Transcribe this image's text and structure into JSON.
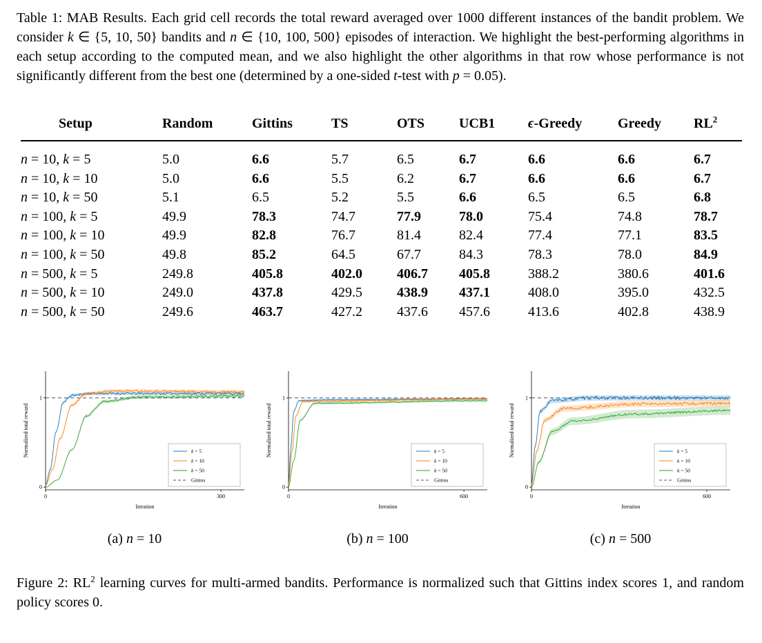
{
  "document": {
    "table_caption_segments": [
      {
        "t": "Table 1: MAB Results. Each grid cell records the total reward averaged over 1000 different instances of the bandit problem. We consider "
      },
      {
        "t": "k",
        "s": "i"
      },
      {
        "t": " ∈ {5, 10, 50} bandits and "
      },
      {
        "t": "n",
        "s": "i"
      },
      {
        "t": " ∈ {10, 100, 500} episodes of interaction. We highlight the best-performing algorithms in each setup according to the computed mean, and we also highlight the other algorithms in that row whose performance is not significantly different from the best one (determined by a one-sided "
      },
      {
        "t": "t",
        "s": "i"
      },
      {
        "t": "-test with "
      },
      {
        "t": "p",
        "s": "i"
      },
      {
        "t": " = 0.05)."
      }
    ],
    "figure_caption_segments": [
      {
        "t": "Figure 2: RL"
      },
      {
        "t": "2",
        "s": "sup"
      },
      {
        "t": " learning curves for multi-armed bandits. Performance is normalized such that Gittins index scores 1, and random policy scores 0."
      }
    ],
    "subcaptions": {
      "a": [
        {
          "t": "(a) "
        },
        {
          "t": "n",
          "s": "i"
        },
        {
          "t": " = 10"
        }
      ],
      "b": [
        {
          "t": "(b) "
        },
        {
          "t": "n",
          "s": "i"
        },
        {
          "t": " = 100"
        }
      ],
      "c": [
        {
          "t": "(c) "
        },
        {
          "t": "n",
          "s": "i"
        },
        {
          "t": " = 500"
        }
      ]
    }
  },
  "table": {
    "columns": [
      {
        "segments": [
          {
            "t": "Setup"
          }
        ]
      },
      {
        "segments": [
          {
            "t": "Random"
          }
        ]
      },
      {
        "segments": [
          {
            "t": "Gittins"
          }
        ]
      },
      {
        "segments": [
          {
            "t": "TS"
          }
        ]
      },
      {
        "segments": [
          {
            "t": "OTS"
          }
        ]
      },
      {
        "segments": [
          {
            "t": "UCB1"
          }
        ]
      },
      {
        "segments": [
          {
            "t": "ϵ",
            "s": "i"
          },
          {
            "t": "-Greedy"
          }
        ]
      },
      {
        "segments": [
          {
            "t": "Greedy"
          }
        ]
      },
      {
        "segments": [
          {
            "t": "RL"
          },
          {
            "t": "2",
            "s": "sup"
          }
        ]
      }
    ],
    "rows": [
      {
        "label": [
          {
            "t": "n",
            "s": "i"
          },
          {
            "t": " = 10, "
          },
          {
            "t": "k",
            "s": "i"
          },
          {
            "t": " = 5"
          }
        ],
        "cells": [
          {
            "v": "5.0"
          },
          {
            "v": "6.6",
            "b": true
          },
          {
            "v": "5.7"
          },
          {
            "v": "6.5"
          },
          {
            "v": "6.7",
            "b": true
          },
          {
            "v": "6.6",
            "b": true
          },
          {
            "v": "6.6",
            "b": true
          },
          {
            "v": "6.7",
            "b": true
          }
        ]
      },
      {
        "label": [
          {
            "t": "n",
            "s": "i"
          },
          {
            "t": " = 10, "
          },
          {
            "t": "k",
            "s": "i"
          },
          {
            "t": " = 10"
          }
        ],
        "cells": [
          {
            "v": "5.0"
          },
          {
            "v": "6.6",
            "b": true
          },
          {
            "v": "5.5"
          },
          {
            "v": "6.2"
          },
          {
            "v": "6.7",
            "b": true
          },
          {
            "v": "6.6",
            "b": true
          },
          {
            "v": "6.6",
            "b": true
          },
          {
            "v": "6.7",
            "b": true
          }
        ]
      },
      {
        "label": [
          {
            "t": "n",
            "s": "i"
          },
          {
            "t": " = 10, "
          },
          {
            "t": "k",
            "s": "i"
          },
          {
            "t": " = 50"
          }
        ],
        "cells": [
          {
            "v": "5.1"
          },
          {
            "v": "6.5"
          },
          {
            "v": "5.2"
          },
          {
            "v": "5.5"
          },
          {
            "v": "6.6",
            "b": true
          },
          {
            "v": "6.5"
          },
          {
            "v": "6.5"
          },
          {
            "v": "6.8",
            "b": true
          }
        ]
      },
      {
        "label": [
          {
            "t": "n",
            "s": "i"
          },
          {
            "t": " = 100, "
          },
          {
            "t": "k",
            "s": "i"
          },
          {
            "t": " = 5"
          }
        ],
        "cells": [
          {
            "v": "49.9"
          },
          {
            "v": "78.3",
            "b": true
          },
          {
            "v": "74.7"
          },
          {
            "v": "77.9",
            "b": true
          },
          {
            "v": "78.0",
            "b": true
          },
          {
            "v": "75.4"
          },
          {
            "v": "74.8"
          },
          {
            "v": "78.7",
            "b": true
          }
        ]
      },
      {
        "label": [
          {
            "t": "n",
            "s": "i"
          },
          {
            "t": " = 100, "
          },
          {
            "t": "k",
            "s": "i"
          },
          {
            "t": " = 10"
          }
        ],
        "cells": [
          {
            "v": "49.9"
          },
          {
            "v": "82.8",
            "b": true
          },
          {
            "v": "76.7"
          },
          {
            "v": "81.4"
          },
          {
            "v": "82.4"
          },
          {
            "v": "77.4"
          },
          {
            "v": "77.1"
          },
          {
            "v": "83.5",
            "b": true
          }
        ]
      },
      {
        "label": [
          {
            "t": "n",
            "s": "i"
          },
          {
            "t": " = 100, "
          },
          {
            "t": "k",
            "s": "i"
          },
          {
            "t": " = 50"
          }
        ],
        "cells": [
          {
            "v": "49.8"
          },
          {
            "v": "85.2",
            "b": true
          },
          {
            "v": "64.5"
          },
          {
            "v": "67.7"
          },
          {
            "v": "84.3"
          },
          {
            "v": "78.3"
          },
          {
            "v": "78.0"
          },
          {
            "v": "84.9",
            "b": true
          }
        ]
      },
      {
        "label": [
          {
            "t": "n",
            "s": "i"
          },
          {
            "t": " = 500, "
          },
          {
            "t": "k",
            "s": "i"
          },
          {
            "t": " = 5"
          }
        ],
        "cells": [
          {
            "v": "249.8"
          },
          {
            "v": "405.8",
            "b": true
          },
          {
            "v": "402.0",
            "b": true
          },
          {
            "v": "406.7",
            "b": true
          },
          {
            "v": "405.8",
            "b": true
          },
          {
            "v": "388.2"
          },
          {
            "v": "380.6"
          },
          {
            "v": "401.6",
            "b": true
          }
        ]
      },
      {
        "label": [
          {
            "t": "n",
            "s": "i"
          },
          {
            "t": " = 500, "
          },
          {
            "t": "k",
            "s": "i"
          },
          {
            "t": " = 10"
          }
        ],
        "cells": [
          {
            "v": "249.0"
          },
          {
            "v": "437.8",
            "b": true
          },
          {
            "v": "429.5"
          },
          {
            "v": "438.9",
            "b": true
          },
          {
            "v": "437.1",
            "b": true
          },
          {
            "v": "408.0"
          },
          {
            "v": "395.0"
          },
          {
            "v": "432.5"
          }
        ]
      },
      {
        "label": [
          {
            "t": "n",
            "s": "i"
          },
          {
            "t": " = 500, "
          },
          {
            "t": "k",
            "s": "i"
          },
          {
            "t": " = 50"
          }
        ],
        "cells": [
          {
            "v": "249.6"
          },
          {
            "v": "463.7",
            "b": true
          },
          {
            "v": "427.2"
          },
          {
            "v": "437.6"
          },
          {
            "v": "457.6"
          },
          {
            "v": "413.6"
          },
          {
            "v": "402.8"
          },
          {
            "v": "438.9"
          }
        ]
      }
    ]
  },
  "chart_data": [
    {
      "type": "line",
      "title": "(a) n = 10",
      "xlabel": "Iteration",
      "ylabel": "Normalized total reward",
      "xlim": [
        0,
        340
      ],
      "ylim": [
        -0.03,
        1.3
      ],
      "xticks": [
        0,
        300
      ],
      "yticks": [
        0,
        1
      ],
      "grid": false,
      "legend_position": "lower right",
      "legend": [
        "k = 5",
        "k = 10",
        "k = 50",
        "Gittins"
      ],
      "series": [
        {
          "name": "k = 5",
          "color": "#1f77b4",
          "noise": 0.012,
          "band": 0.018,
          "keypoints": [
            [
              0,
              0.02
            ],
            [
              8,
              0.2
            ],
            [
              18,
              0.62
            ],
            [
              30,
              0.95
            ],
            [
              45,
              1.03
            ],
            [
              80,
              1.05
            ],
            [
              340,
              1.05
            ]
          ]
        },
        {
          "name": "k = 10",
          "color": "#ff7f0e",
          "noise": 0.012,
          "band": 0.018,
          "keypoints": [
            [
              0,
              0.02
            ],
            [
              12,
              0.2
            ],
            [
              25,
              0.55
            ],
            [
              45,
              0.92
            ],
            [
              70,
              1.05
            ],
            [
              120,
              1.08
            ],
            [
              340,
              1.07
            ]
          ]
        },
        {
          "name": "k = 50",
          "color": "#2ca02c",
          "noise": 0.012,
          "band": 0.02,
          "keypoints": [
            [
              0,
              0.0
            ],
            [
              20,
              0.08
            ],
            [
              45,
              0.42
            ],
            [
              70,
              0.8
            ],
            [
              100,
              0.96
            ],
            [
              160,
              1.01
            ],
            [
              340,
              1.02
            ]
          ]
        }
      ],
      "reference": {
        "name": "Gittins",
        "value": 1.0,
        "style": "dashed",
        "color": "#44506e"
      }
    },
    {
      "type": "line",
      "title": "(b) n = 100",
      "xlabel": "Iteration",
      "ylabel": "Normalized total reward",
      "xlim": [
        0,
        680
      ],
      "ylim": [
        -0.03,
        1.3
      ],
      "xticks": [
        0,
        600
      ],
      "yticks": [
        0,
        1
      ],
      "grid": false,
      "legend_position": "lower right",
      "legend": [
        "k = 5",
        "k = 10",
        "k = 50",
        "Gittins"
      ],
      "series": [
        {
          "name": "k = 5",
          "color": "#1f77b4",
          "noise": 0.007,
          "band": 0.012,
          "keypoints": [
            [
              0,
              0.03
            ],
            [
              8,
              0.45
            ],
            [
              18,
              0.85
            ],
            [
              35,
              0.97
            ],
            [
              120,
              0.98
            ],
            [
              680,
              0.99
            ]
          ]
        },
        {
          "name": "k = 10",
          "color": "#ff7f0e",
          "noise": 0.007,
          "band": 0.012,
          "keypoints": [
            [
              0,
              0.02
            ],
            [
              12,
              0.4
            ],
            [
              25,
              0.8
            ],
            [
              50,
              0.96
            ],
            [
              680,
              0.99
            ]
          ]
        },
        {
          "name": "k = 50",
          "color": "#2ca02c",
          "noise": 0.006,
          "band": 0.012,
          "keypoints": [
            [
              0,
              0.0
            ],
            [
              18,
              0.3
            ],
            [
              40,
              0.75
            ],
            [
              90,
              0.94
            ],
            [
              680,
              0.97
            ]
          ]
        }
      ],
      "reference": {
        "name": "Gittins",
        "value": 1.0,
        "style": "dashed",
        "color": "#44506e"
      }
    },
    {
      "type": "line",
      "title": "(c) n = 500",
      "xlabel": "Iteration",
      "ylabel": "Normalized total reward",
      "xlim": [
        0,
        680
      ],
      "ylim": [
        -0.03,
        1.3
      ],
      "xticks": [
        0,
        600
      ],
      "yticks": [
        0,
        1
      ],
      "grid": false,
      "legend_position": "lower right",
      "legend": [
        "k = 5",
        "k = 10",
        "k = 50",
        "Gittins"
      ],
      "series": [
        {
          "name": "k = 5",
          "color": "#1f77b4",
          "noise": 0.018,
          "band": 0.03,
          "keypoints": [
            [
              0,
              0.03
            ],
            [
              12,
              0.45
            ],
            [
              30,
              0.85
            ],
            [
              70,
              0.97
            ],
            [
              200,
              1.0
            ],
            [
              680,
              1.0
            ]
          ]
        },
        {
          "name": "k = 10",
          "color": "#ff7f0e",
          "noise": 0.016,
          "band": 0.035,
          "keypoints": [
            [
              0,
              0.02
            ],
            [
              18,
              0.4
            ],
            [
              45,
              0.75
            ],
            [
              110,
              0.88
            ],
            [
              350,
              0.93
            ],
            [
              680,
              0.94
            ]
          ]
        },
        {
          "name": "k = 50",
          "color": "#2ca02c",
          "noise": 0.012,
          "band": 0.05,
          "keypoints": [
            [
              0,
              0.0
            ],
            [
              25,
              0.28
            ],
            [
              70,
              0.62
            ],
            [
              140,
              0.74
            ],
            [
              350,
              0.82
            ],
            [
              680,
              0.86
            ]
          ]
        }
      ],
      "reference": {
        "name": "Gittins",
        "value": 1.0,
        "style": "dashed",
        "color": "#44506e"
      }
    }
  ],
  "colors": {
    "k5": "#1f77b4",
    "k10": "#ff7f0e",
    "k50": "#2ca02c",
    "gittins_ref": "#44506e"
  }
}
